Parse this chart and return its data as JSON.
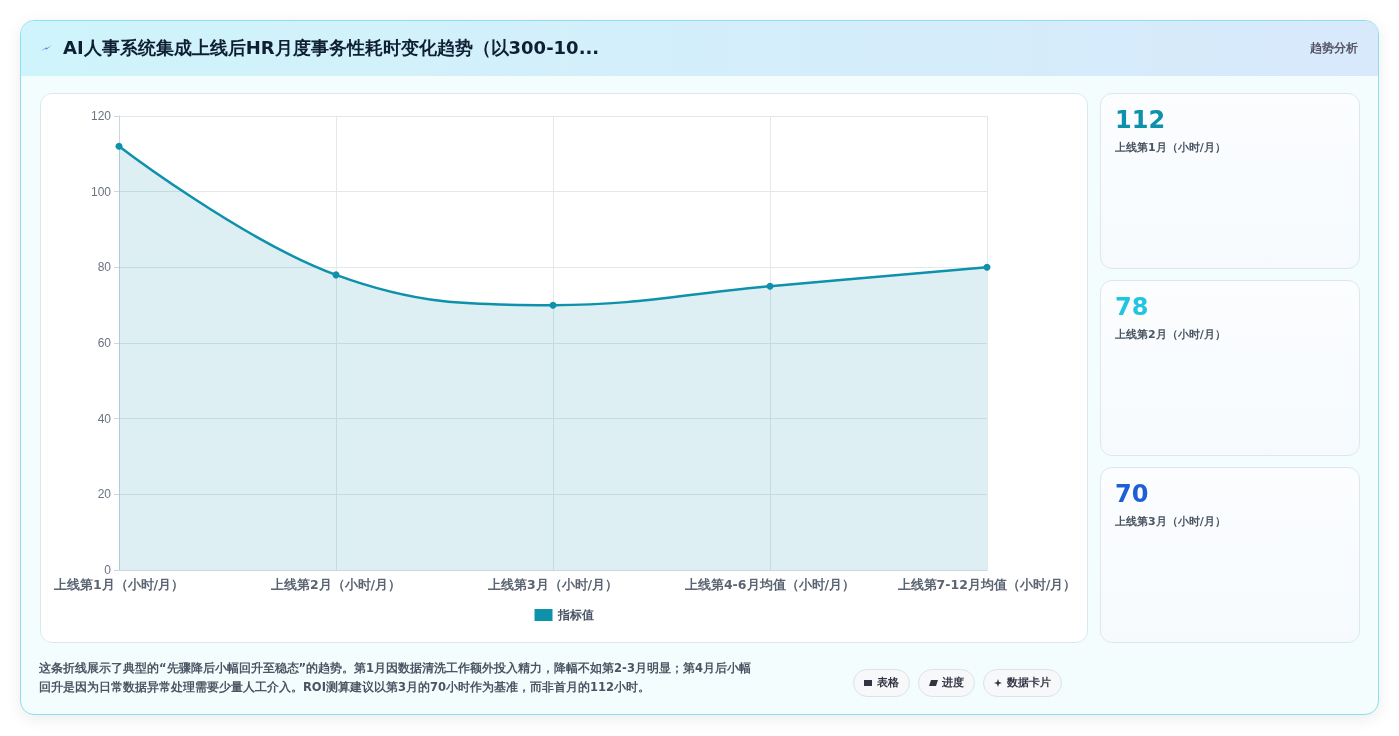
{
  "chart_data": {
    "type": "area",
    "title": "AI人事系统集成上线后HR月度事务性耗时变化趋势（以300-10...",
    "categories": [
      "上线第1月（小时/月）",
      "上线第2月（小时/月）",
      "上线第3月（小时/月）",
      "上线第4-6月均值（小时/月）",
      "上线第7-12月均值（小时/月）"
    ],
    "series": [
      {
        "name": "指标值",
        "color": "#0e91ab",
        "values": [
          112,
          78,
          70,
          75,
          80
        ]
      }
    ],
    "ylim": [
      0,
      120
    ],
    "yticks": [
      0,
      20,
      40,
      60,
      80,
      100,
      120
    ],
    "grid": true,
    "legend": "bottom",
    "marker": "circle",
    "line_style": "solid",
    "annotations": [
      "趋势分析",
      "112",
      "上线第1月（小时/月）",
      "78",
      "上线第2月（小时/月）",
      "70",
      "上线第3月（小时/月）",
      "这条折线展示了典型的“先骤降后小幅回升至稳态”的趋势。第1月因数据清洗工作额外投入精力，降幅不如第2-3月明显；第4月后小幅回升是因为日常数据异常处理需要少量人工介入。ROI测算建议以第3月的70小时作为基准，而非首月的112小时。",
      "表格",
      "进度",
      "数据卡片"
    ]
  }
}
